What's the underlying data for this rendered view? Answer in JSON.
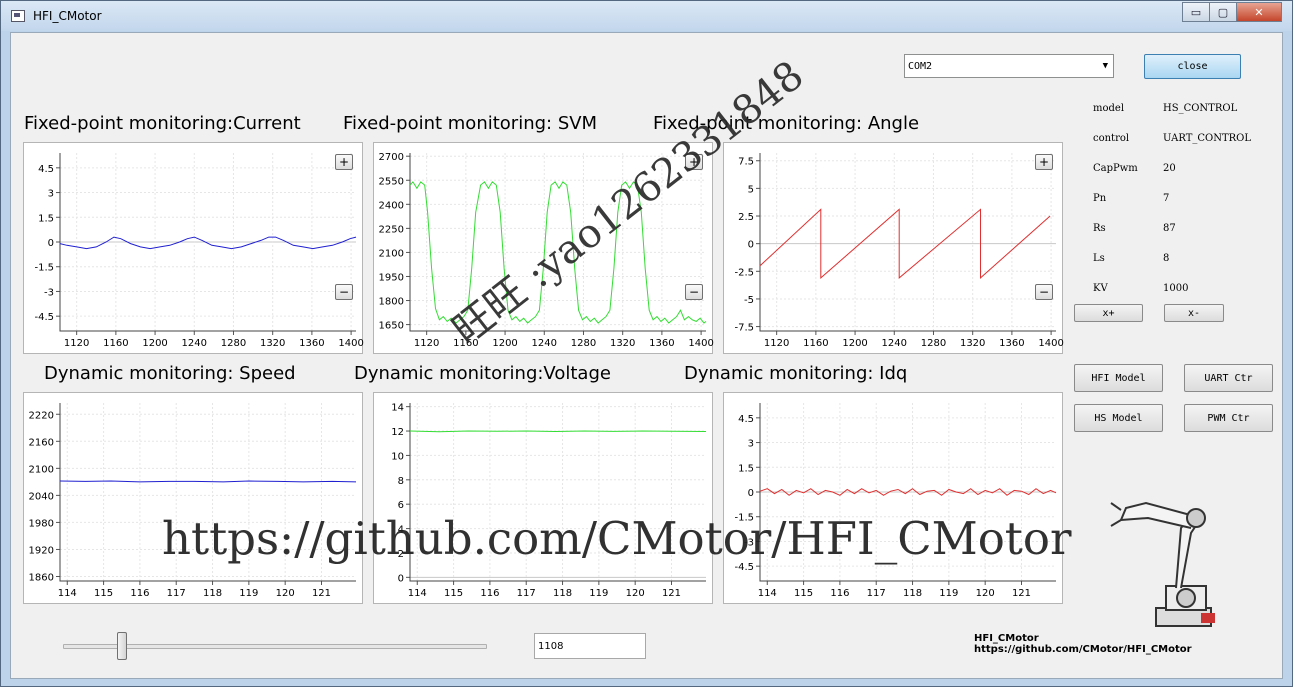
{
  "window": {
    "title": "HFI_CMotor",
    "min_label": "▭",
    "max_label": "▢",
    "close_label": "✕"
  },
  "toolbar": {
    "port_value": "COM2",
    "close_label": "close"
  },
  "sections": {
    "current": "Fixed-point monitoring:Current",
    "svm": "Fixed-point monitoring:  SVM",
    "angle": "Fixed-point monitoring: Angle",
    "speed": "Dynamic monitoring: Speed",
    "voltage": "Dynamic monitoring:Voltage",
    "idq": "Dynamic monitoring: Idq"
  },
  "params": [
    {
      "label": "model",
      "value": "HS_CONTROL"
    },
    {
      "label": "control",
      "value": "UART_CONTROL"
    },
    {
      "label": "CapPwm",
      "value": "20"
    },
    {
      "label": "Pn",
      "value": "7"
    },
    {
      "label": "Rs",
      "value": "87"
    },
    {
      "label": "Ls",
      "value": "8"
    },
    {
      "label": "KV",
      "value": "1000"
    }
  ],
  "buttons": {
    "x_plus": "x+",
    "x_minus": "x-",
    "hfi_model": "HFI Model",
    "uart_ctr": "UART Ctr",
    "hs_model": "HS Model",
    "pwm_ctr": "PWM Ctr"
  },
  "zoom": {
    "plus": "+",
    "minus": "−"
  },
  "slider": {
    "fraction": 0.14
  },
  "value_box": "1108",
  "footer": {
    "line1": "HFI_CMotor",
    "line2": "https://github.com/CMotor/HFI_CMotor"
  },
  "watermark": {
    "diagonal": "旺旺 :yao1262331848",
    "url": "https://github.com/CMotor/HFI_CMotor"
  },
  "colors": {
    "current": "#2020d0",
    "svm": "#33dd33",
    "angle": "#e03030",
    "speed": "#2020d0",
    "voltage": "#33dd33",
    "idq": "#e03030"
  },
  "chart_data": [
    {
      "id": "current",
      "type": "line",
      "x_ticks": [
        "1120",
        "1160",
        "1200",
        "1240",
        "1280",
        "1320",
        "1360",
        "1400"
      ],
      "y_ticks": [
        "4.5",
        "3",
        "1.5",
        "0",
        "-1.5",
        "-3",
        "-4.5"
      ],
      "xlim": [
        1103,
        1405
      ],
      "ylim": [
        -5.4,
        5.4
      ],
      "series": [
        {
          "x": [
            1103,
            1110,
            1120,
            1130,
            1140,
            1150,
            1158,
            1165,
            1175,
            1185,
            1195,
            1205,
            1215,
            1225,
            1233,
            1240,
            1248,
            1258,
            1268,
            1278,
            1288,
            1298,
            1308,
            1316,
            1323,
            1331,
            1341,
            1351,
            1361,
            1371,
            1381,
            1391,
            1399,
            1405
          ],
          "values": [
            -0.1,
            -0.2,
            -0.3,
            -0.4,
            -0.3,
            0.0,
            0.3,
            0.2,
            -0.1,
            -0.3,
            -0.4,
            -0.3,
            -0.2,
            0.0,
            0.2,
            0.3,
            0.1,
            -0.2,
            -0.3,
            -0.4,
            -0.3,
            -0.1,
            0.1,
            0.3,
            0.3,
            0.1,
            -0.2,
            -0.3,
            -0.4,
            -0.3,
            -0.2,
            0.0,
            0.2,
            0.3
          ]
        }
      ]
    },
    {
      "id": "svm",
      "type": "line",
      "x_ticks": [
        "1120",
        "1160",
        "1200",
        "1240",
        "1280",
        "1320",
        "1360",
        "1400"
      ],
      "y_ticks": [
        "2700",
        "2550",
        "2400",
        "2250",
        "2100",
        "1950",
        "1800",
        "1650"
      ],
      "xlim": [
        1103,
        1405
      ],
      "ylim": [
        1610,
        2720
      ],
      "series": [
        {
          "x": [
            1103,
            1106,
            1110,
            1114,
            1118,
            1121,
            1125,
            1129,
            1133,
            1137,
            1141,
            1145,
            1150,
            1154,
            1158,
            1162,
            1166,
            1170,
            1175,
            1179,
            1183,
            1187,
            1191,
            1195,
            1199,
            1203,
            1207,
            1211,
            1215,
            1219,
            1223,
            1227,
            1231,
            1235,
            1239,
            1243,
            1247,
            1251,
            1255,
            1259,
            1263,
            1267,
            1271,
            1275,
            1279,
            1283,
            1287,
            1291,
            1295,
            1299,
            1303,
            1307,
            1311,
            1315,
            1319,
            1323,
            1327,
            1331,
            1335,
            1339,
            1343,
            1347,
            1351,
            1355,
            1359,
            1363,
            1367,
            1371,
            1375,
            1379,
            1383,
            1387,
            1391,
            1395,
            1399,
            1403,
            1405
          ],
          "values": [
            2520,
            2540,
            2500,
            2540,
            2520,
            2350,
            2000,
            1750,
            1680,
            1700,
            1670,
            1690,
            1660,
            1680,
            1700,
            1740,
            2000,
            2350,
            2520,
            2540,
            2500,
            2540,
            2520,
            2350,
            2000,
            1740,
            1680,
            1700,
            1670,
            1690,
            1660,
            1680,
            1700,
            1740,
            2000,
            2350,
            2520,
            2540,
            2500,
            2540,
            2520,
            2350,
            2000,
            1740,
            1680,
            1700,
            1670,
            1690,
            1660,
            1680,
            1700,
            1740,
            2000,
            2350,
            2520,
            2540,
            2500,
            2540,
            2520,
            2350,
            2000,
            1740,
            1680,
            1700,
            1670,
            1690,
            1660,
            1680,
            1700,
            1740,
            1680,
            1700,
            1680,
            1670,
            1690,
            1660,
            1670
          ]
        }
      ]
    },
    {
      "id": "angle",
      "type": "line",
      "x_ticks": [
        "1120",
        "1160",
        "1200",
        "1240",
        "1280",
        "1320",
        "1360",
        "1400"
      ],
      "y_ticks": [
        "7.5",
        "5",
        "2.5",
        "0",
        "-2.5",
        "-5",
        "-7.5"
      ],
      "xlim": [
        1103,
        1405
      ],
      "ylim": [
        -7.9,
        8.2
      ],
      "series": [
        {
          "x": [
            1103,
            1165,
            1165.01,
            1245,
            1245.01,
            1328,
            1328.01,
            1399
          ],
          "values": [
            -2.0,
            3.1,
            -3.1,
            3.1,
            -3.1,
            3.1,
            -3.1,
            2.5
          ]
        }
      ]
    },
    {
      "id": "speed",
      "type": "line",
      "x_ticks": [
        "114",
        "115",
        "116",
        "117",
        "118",
        "119",
        "120",
        "121"
      ],
      "y_ticks": [
        "2220",
        "2160",
        "2100",
        "2040",
        "1980",
        "1920",
        "1860"
      ],
      "xlim": [
        113.8,
        121.95
      ],
      "ylim": [
        1850,
        2245
      ],
      "series": [
        {
          "x": [
            113.8,
            114.5,
            115.2,
            116.0,
            116.8,
            117.5,
            118.3,
            119.0,
            119.8,
            120.5,
            121.3,
            121.95
          ],
          "values": [
            2072,
            2071,
            2072,
            2070,
            2071,
            2071,
            2070,
            2072,
            2071,
            2070,
            2071,
            2070
          ]
        }
      ]
    },
    {
      "id": "voltage",
      "type": "line",
      "x_ticks": [
        "114",
        "115",
        "116",
        "117",
        "118",
        "119",
        "120",
        "121"
      ],
      "y_ticks": [
        "14",
        "12",
        "10",
        "8",
        "6",
        "4",
        "2",
        "0"
      ],
      "xlim": [
        113.8,
        121.95
      ],
      "ylim": [
        -0.3,
        14.3
      ],
      "series": [
        {
          "x": [
            113.8,
            114.6,
            115.4,
            116.2,
            117.0,
            117.8,
            118.6,
            119.4,
            120.2,
            121.0,
            121.95
          ],
          "values": [
            12.0,
            11.95,
            12.0,
            11.98,
            12.0,
            11.96,
            12.0,
            11.97,
            12.0,
            11.98,
            11.96
          ]
        }
      ]
    },
    {
      "id": "idq",
      "type": "line",
      "x_ticks": [
        "114",
        "115",
        "116",
        "117",
        "118",
        "119",
        "120",
        "121"
      ],
      "y_ticks": [
        "4.5",
        "3",
        "1.5",
        "0",
        "-1.5",
        "-3",
        "-4.5"
      ],
      "xlim": [
        113.8,
        121.95
      ],
      "ylim": [
        -5.4,
        5.4
      ],
      "series": [
        {
          "x": [
            113.8,
            114.0,
            114.2,
            114.4,
            114.6,
            114.8,
            115.0,
            115.2,
            115.4,
            115.6,
            115.8,
            116.0,
            116.2,
            116.4,
            116.6,
            116.8,
            117.0,
            117.2,
            117.4,
            117.6,
            117.8,
            118.0,
            118.2,
            118.4,
            118.6,
            118.8,
            119.0,
            119.2,
            119.4,
            119.6,
            119.8,
            120.0,
            120.2,
            120.4,
            120.6,
            120.8,
            121.0,
            121.2,
            121.4,
            121.6,
            121.8,
            121.95
          ],
          "values": [
            0.05,
            0.2,
            -0.1,
            0.15,
            -0.2,
            0.1,
            -0.05,
            0.2,
            -0.15,
            0.1,
            0.0,
            -0.2,
            0.15,
            -0.1,
            0.2,
            -0.05,
            0.1,
            -0.2,
            0.05,
            0.15,
            -0.1,
            0.2,
            -0.15,
            0.05,
            0.1,
            -0.2,
            0.15,
            0.0,
            -0.1,
            0.2,
            -0.15,
            0.1,
            -0.05,
            0.2,
            -0.2,
            0.1,
            0.05,
            -0.15,
            0.2,
            -0.1,
            0.1,
            -0.05
          ]
        }
      ]
    }
  ]
}
